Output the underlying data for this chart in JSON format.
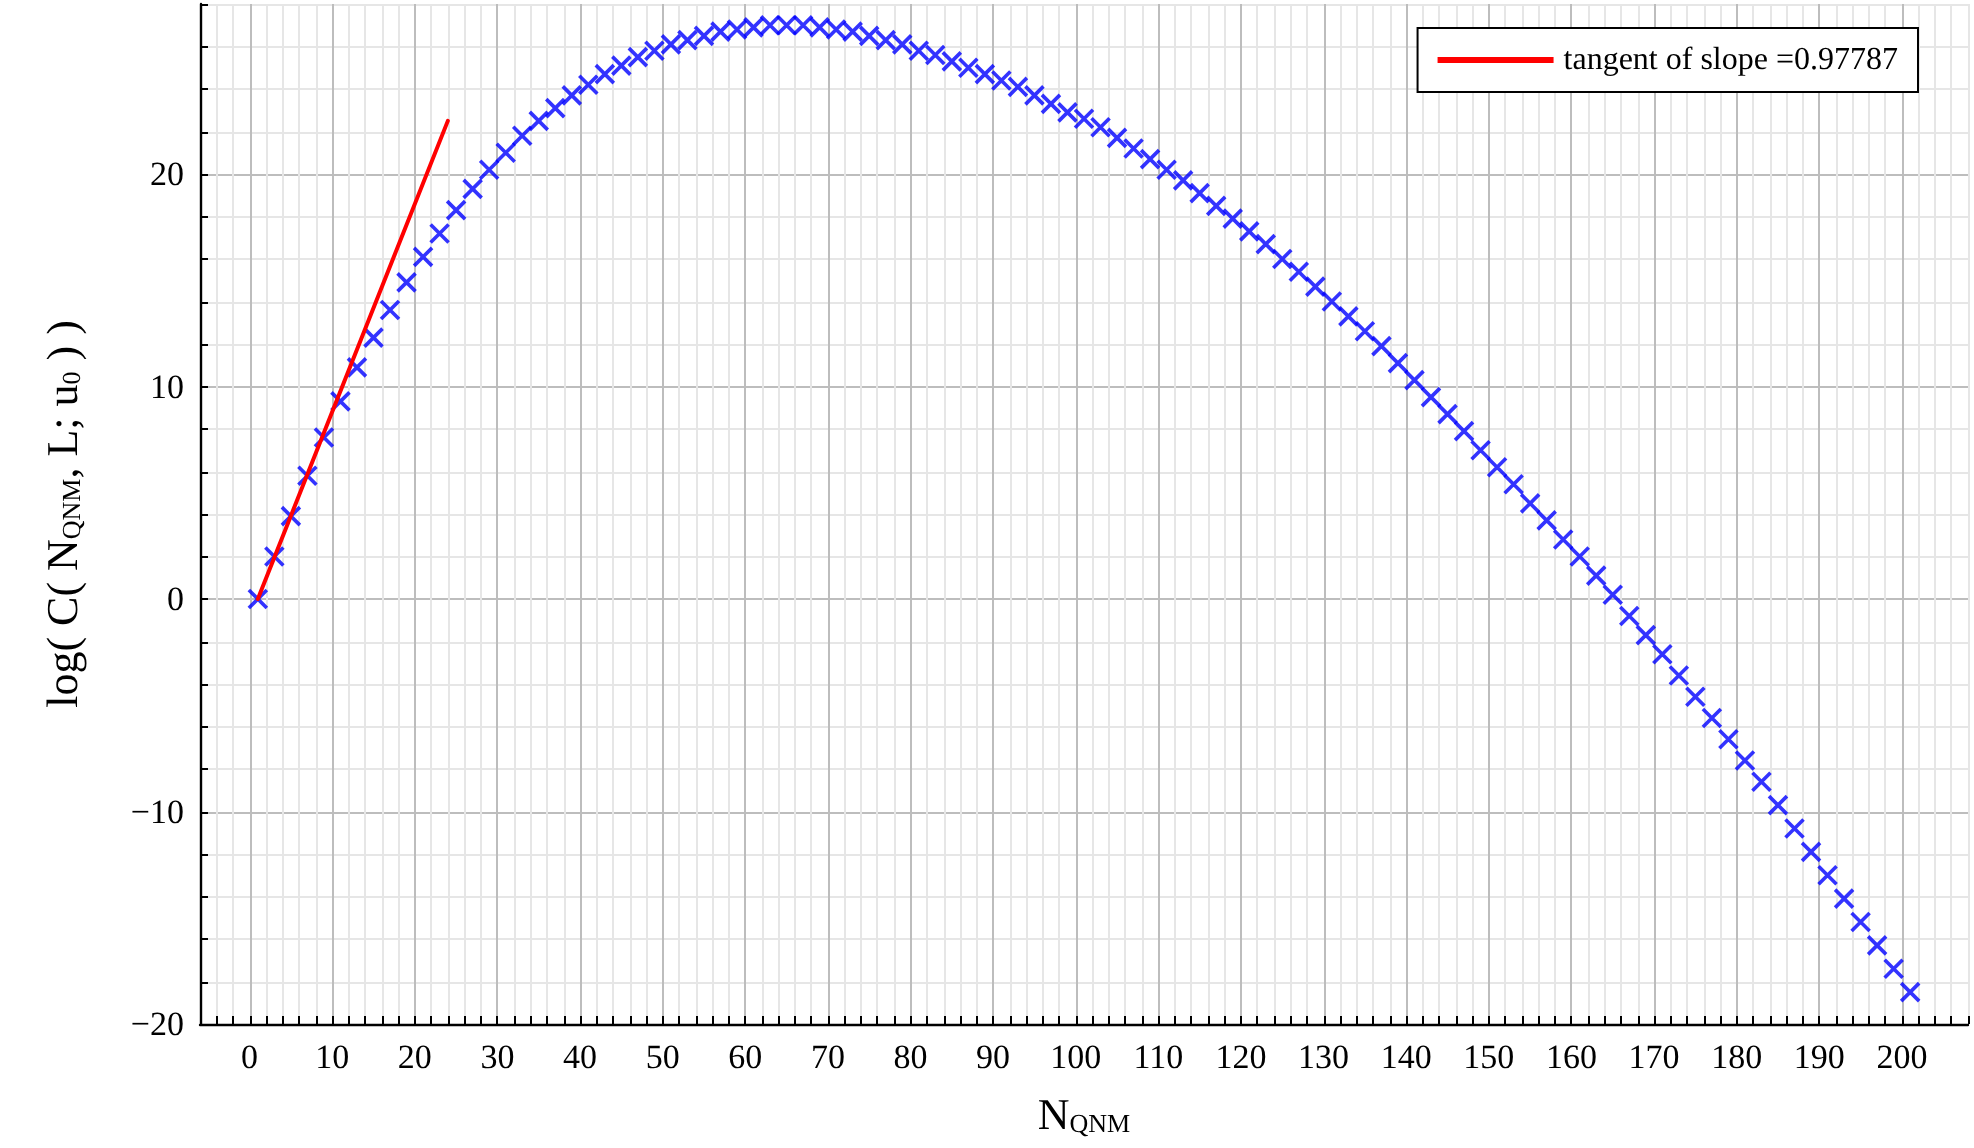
{
  "chart_data": {
    "type": "scatter",
    "xlabel": "N$_{QNM}$",
    "ylabel": "log( C( N$_{QNM}$, L; u$_{0}$ ) )",
    "xlim": [
      -6,
      208
    ],
    "ylim": [
      -20,
      28
    ],
    "xticks": [
      0,
      10,
      20,
      30,
      40,
      50,
      60,
      70,
      80,
      90,
      100,
      110,
      120,
      130,
      140,
      150,
      160,
      170,
      180,
      190,
      200
    ],
    "yticks": [
      -20,
      -10,
      0,
      10,
      20
    ],
    "grid": true,
    "legend": "top right",
    "series": [
      {
        "marker": "cross",
        "color": "#0000ff",
        "x": [
          1,
          3,
          5,
          7,
          9,
          11,
          13,
          15,
          17,
          19,
          21,
          23,
          25,
          27,
          29,
          31,
          33,
          35,
          37,
          39,
          41,
          43,
          45,
          47,
          49,
          51,
          53,
          55,
          57,
          59,
          61,
          63,
          65,
          67,
          69,
          71,
          73,
          75,
          77,
          79,
          81,
          83,
          85,
          87,
          89,
          91,
          93,
          95,
          97,
          99,
          101,
          103,
          105,
          107,
          109,
          111,
          113,
          115,
          117,
          119,
          121,
          123,
          125,
          127,
          129,
          131,
          133,
          135,
          137,
          139,
          141,
          143,
          145,
          147,
          149,
          151,
          153,
          155,
          157,
          159,
          161,
          163,
          165,
          167,
          169,
          171,
          173,
          175,
          177,
          179,
          181,
          183,
          185,
          187,
          189,
          191,
          193,
          195,
          197,
          199,
          201
        ],
        "values": [
          0,
          2.0,
          3.9,
          5.8,
          7.6,
          9.3,
          10.9,
          12.3,
          13.6,
          14.9,
          16.1,
          17.2,
          18.3,
          19.3,
          20.2,
          21.0,
          21.8,
          22.5,
          23.1,
          23.7,
          24.2,
          24.7,
          25.1,
          25.5,
          25.8,
          26.1,
          26.3,
          26.5,
          26.7,
          26.8,
          26.9,
          27.0,
          27.0,
          27.0,
          26.9,
          26.8,
          26.7,
          26.5,
          26.3,
          26.1,
          25.8,
          25.6,
          25.3,
          25.0,
          24.7,
          24.4,
          24.1,
          23.7,
          23.3,
          22.9,
          22.6,
          22.2,
          21.7,
          21.2,
          20.7,
          20.2,
          19.7,
          19.1,
          18.5,
          17.9,
          17.3,
          16.7,
          16.0,
          15.4,
          14.7,
          14.0,
          13.3,
          12.6,
          11.9,
          11.1,
          10.3,
          9.5,
          8.7,
          7.9,
          7.0,
          6.2,
          5.4,
          4.5,
          3.7,
          2.8,
          2.0,
          1.1,
          0.2,
          -0.8,
          -1.7,
          -2.6,
          -3.6,
          -4.6,
          -5.6,
          -6.6,
          -7.6,
          -8.6,
          -9.7,
          -10.8,
          -11.9,
          -13.0,
          -14.1,
          -15.2,
          -16.3,
          -17.4,
          -18.5
        ]
      },
      {
        "type": "line",
        "name": "tangent of slope =0.97787",
        "color": "#ff0000",
        "marker": "none",
        "line_style": "solid",
        "x": [
          1,
          24
        ],
        "values": [
          0,
          22.5
        ]
      }
    ]
  }
}
